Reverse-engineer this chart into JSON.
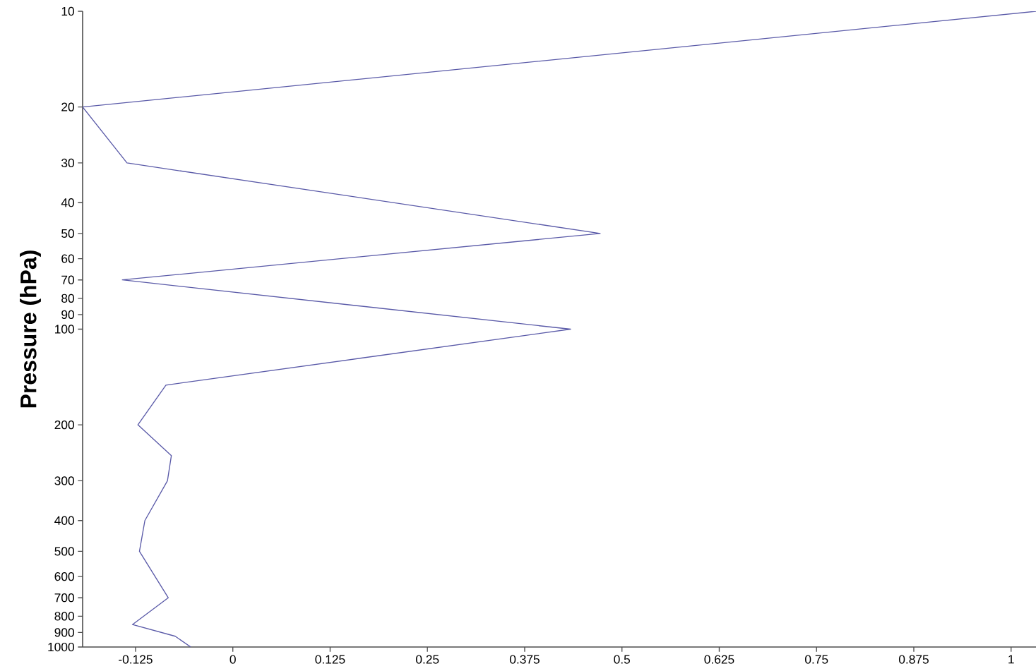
{
  "chart_data": {
    "type": "line",
    "ylabel": "Pressure (hPa)",
    "x": [
      1.032,
      -0.193,
      -0.136,
      0.472,
      -0.142,
      0.434,
      -0.086,
      -0.122,
      -0.079,
      -0.084,
      -0.113,
      -0.12,
      -0.083,
      -0.129,
      -0.074,
      -0.054
    ],
    "series": [
      {
        "color": "#5a5aa8",
        "values": [
          10,
          20,
          30,
          50,
          70,
          100,
          150,
          200,
          250,
          300,
          400,
          500,
          700,
          850,
          925,
          1000
        ]
      }
    ],
    "xlim": [
      -0.193,
      1.032
    ],
    "ylim": [
      1000,
      10
    ],
    "log": "y",
    "xticks": [
      -0.125,
      0,
      0.125,
      0.25,
      0.375,
      0.5,
      0.625,
      0.75,
      0.875,
      1
    ],
    "yticks": [
      10,
      20,
      30,
      40,
      50,
      60,
      70,
      80,
      90,
      100,
      200,
      300,
      400,
      500,
      600,
      700,
      800,
      900,
      1000
    ],
    "grid": false,
    "marker": "none",
    "line_style": "solid"
  }
}
